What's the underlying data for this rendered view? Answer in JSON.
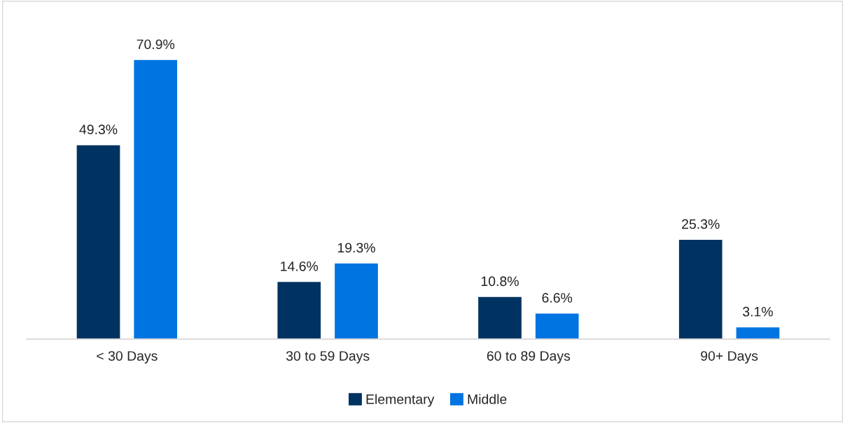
{
  "chart_data": {
    "type": "bar",
    "categories": [
      "< 30 Days",
      "30 to 59 Days",
      "60 to 89 Days",
      "90+ Days"
    ],
    "series": [
      {
        "name": "Elementary",
        "color": "#003361",
        "values": [
          49.3,
          14.6,
          10.8,
          25.3
        ],
        "value_labels": [
          "49.3%",
          "14.6%",
          "10.8%",
          "25.3%"
        ]
      },
      {
        "name": "Middle",
        "color": "#0074e0",
        "values": [
          70.9,
          19.3,
          6.6,
          3.1
        ],
        "value_labels": [
          "70.9%",
          "19.3%",
          "6.6%",
          "3.1%"
        ]
      }
    ],
    "legend": "bottom",
    "grid": false
  }
}
